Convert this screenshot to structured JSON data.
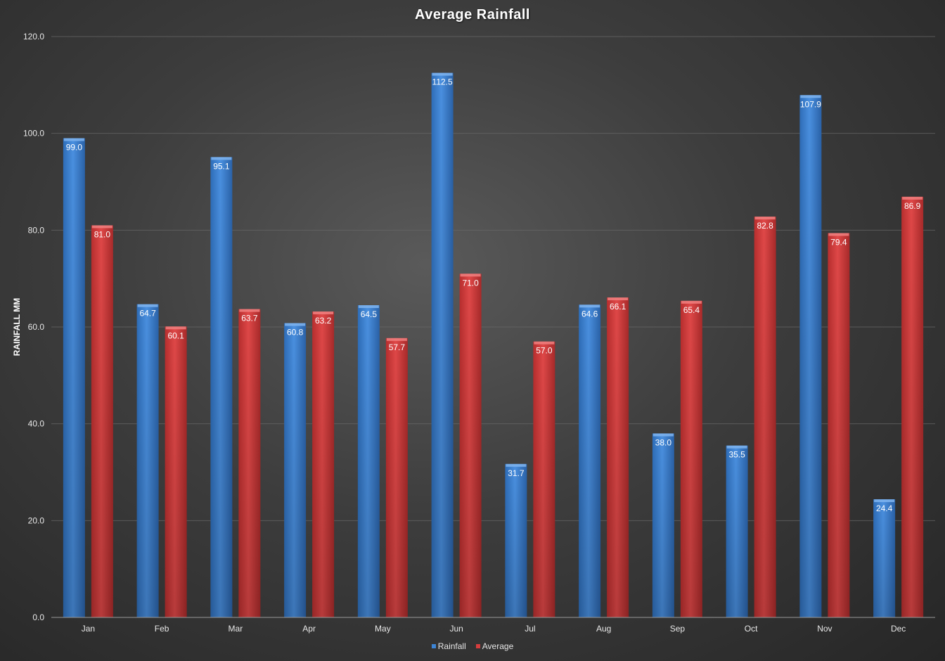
{
  "chart_data": {
    "type": "bar",
    "title": "Average Rainfall",
    "xlabel": "",
    "ylabel": "RAINFALL MM",
    "categories": [
      "Jan",
      "Feb",
      "Mar",
      "Apr",
      "May",
      "Jun",
      "Jul",
      "Aug",
      "Sep",
      "Oct",
      "Nov",
      "Dec"
    ],
    "series": [
      {
        "name": "Rainfall",
        "color": "#3d85d6",
        "values": [
          99.0,
          64.7,
          95.1,
          60.8,
          64.5,
          112.5,
          31.7,
          64.6,
          38.0,
          35.5,
          107.9,
          24.4
        ]
      },
      {
        "name": "Average",
        "color": "#d63d3d",
        "values": [
          81.0,
          60.1,
          63.7,
          63.2,
          57.7,
          71.0,
          57.0,
          66.1,
          65.4,
          82.8,
          79.4,
          86.9
        ]
      }
    ],
    "ylim": [
      0,
      120
    ],
    "yticks": [
      "0.0",
      "20.0",
      "40.0",
      "60.0",
      "80.0",
      "100.0",
      "120.0"
    ],
    "grid": true,
    "legend": "bottom",
    "data_labels": true
  }
}
